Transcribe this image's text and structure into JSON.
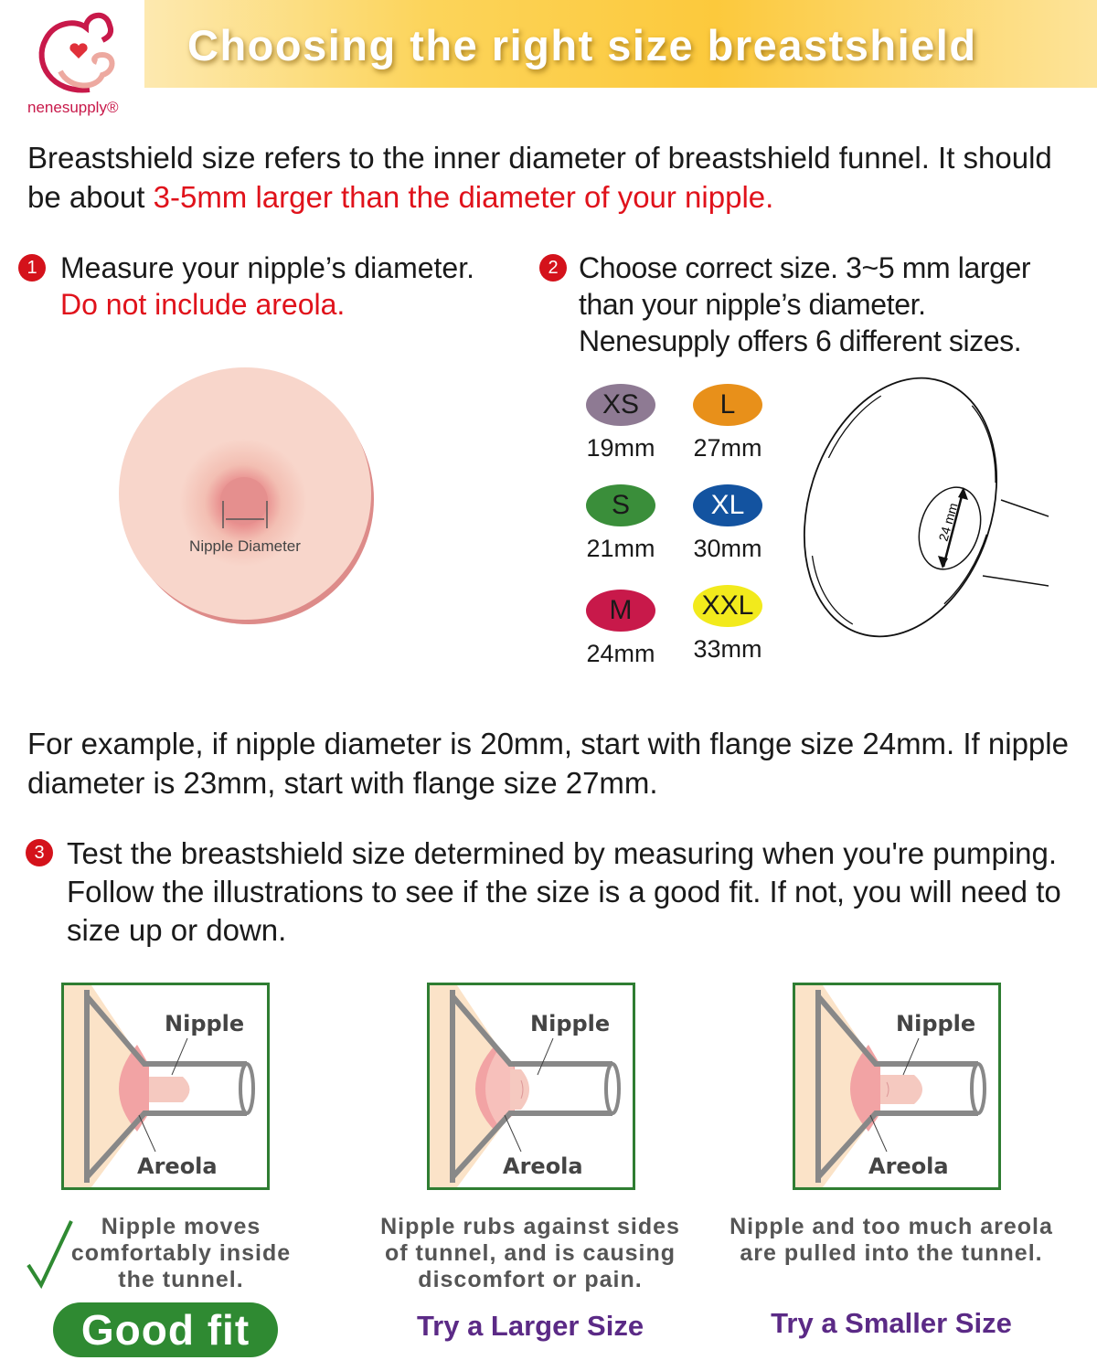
{
  "header": {
    "title": "Choosing the right size breastshield",
    "brand": "nenesupply®"
  },
  "intro": {
    "text1": "Breastshield size refers to the inner diameter of breastshield funnel. It should be about ",
    "text_red": "3-5mm larger than the diameter of your nipple."
  },
  "step1": {
    "num": "1",
    "text": "Measure your nipple’s diameter.",
    "text_red": "Do not include areola.",
    "diagram_label": "Nipple Diameter"
  },
  "step2": {
    "num": "2",
    "text": "Choose correct size. 3~5 mm larger than your nipple’s diameter. Nenesupply offers 6 different sizes.",
    "flange_label": "24 mm"
  },
  "sizes": [
    {
      "label": "XS",
      "mm": "19mm",
      "color": "#8e7a93"
    },
    {
      "label": "L",
      "mm": "27mm",
      "color": "#e8901a"
    },
    {
      "label": "S",
      "mm": "21mm",
      "color": "#3a8e3a"
    },
    {
      "label": "XL",
      "mm": "30mm",
      "color": "#1353a0"
    },
    {
      "label": "M",
      "mm": "24mm",
      "color": "#c8194a"
    },
    {
      "label": "XXL",
      "mm": "33mm",
      "color": "#f2ea1c"
    }
  ],
  "example": "For example, if nipple diameter is 20mm, start with flange size 24mm. If nipple diameter is 23mm, start with flange size 27mm.",
  "step3": {
    "num": "3",
    "text": "Test the breastshield size determined by measuring when you're pumping. Follow the illustrations to see if the size is a good fit. If not, you will need to size up or down."
  },
  "fits": [
    {
      "nipple": "Nipple",
      "areola": "Areola",
      "caption": "Nipple moves comfortably inside the tunnel.",
      "verdict": "Good fit"
    },
    {
      "nipple": "Nipple",
      "areola": "Areola",
      "caption": "Nipple rubs against sides of tunnel, and is causing discomfort or pain.",
      "verdict": "Try a Larger Size"
    },
    {
      "nipple": "Nipple",
      "areola": "Areola",
      "caption": "Nipple and too much areola are pulled into the tunnel.",
      "verdict": "Try a Smaller Size"
    }
  ]
}
